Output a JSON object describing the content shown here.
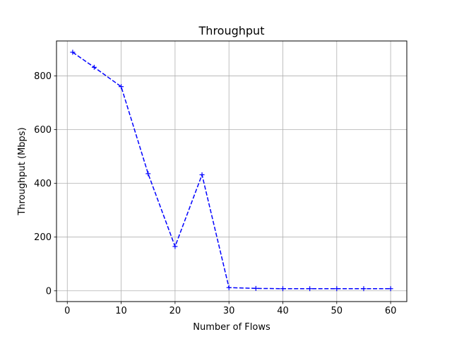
{
  "chart_data": {
    "type": "line",
    "title": "Throughput",
    "xlabel": "Number of Flows",
    "ylabel": "Throughput (Mbps)",
    "xlim": [
      -2.0,
      63.0
    ],
    "ylim": [
      -40,
      930
    ],
    "xticks": [
      0,
      10,
      20,
      30,
      40,
      50,
      60
    ],
    "yticks": [
      0,
      200,
      400,
      600,
      800
    ],
    "grid": true,
    "line_style": "dashed",
    "marker": "+",
    "series_color": "#0000ff",
    "series": [
      {
        "x": [
          1,
          5,
          10,
          15,
          20,
          25,
          30,
          35,
          40,
          45,
          50,
          55,
          60
        ],
        "values": [
          888,
          832,
          760,
          436,
          165,
          432,
          12,
          9,
          8,
          8,
          8,
          8,
          8
        ]
      }
    ]
  }
}
